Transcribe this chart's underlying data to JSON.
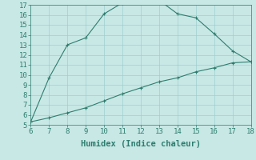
{
  "xlabel": "Humidex (Indice chaleur)",
  "ylabel": "",
  "x_upper": [
    6,
    7,
    8,
    9,
    10,
    11,
    12,
    13,
    14,
    15,
    16,
    17,
    18
  ],
  "y_upper": [
    5.3,
    9.7,
    13.0,
    13.7,
    16.1,
    17.2,
    17.3,
    17.45,
    16.1,
    15.7,
    14.1,
    12.4,
    11.3
  ],
  "x_lower": [
    6,
    7,
    8,
    9,
    10,
    11,
    12,
    13,
    14,
    15,
    16,
    17,
    18
  ],
  "y_lower": [
    5.3,
    5.7,
    6.2,
    6.7,
    7.4,
    8.1,
    8.7,
    9.3,
    9.7,
    10.3,
    10.7,
    11.2,
    11.3
  ],
  "line_color": "#2e7d6e",
  "fill_color": "#c8e8e5",
  "bg_color": "#c8e8e5",
  "grid_color": "#9dcfcf",
  "xlim": [
    6,
    18
  ],
  "ylim": [
    5,
    17
  ],
  "xticks": [
    6,
    7,
    8,
    9,
    10,
    11,
    12,
    13,
    14,
    15,
    16,
    17,
    18
  ],
  "yticks": [
    5,
    6,
    7,
    8,
    9,
    10,
    11,
    12,
    13,
    14,
    15,
    16,
    17
  ],
  "tick_fontsize": 6.5,
  "label_fontsize": 7.5
}
